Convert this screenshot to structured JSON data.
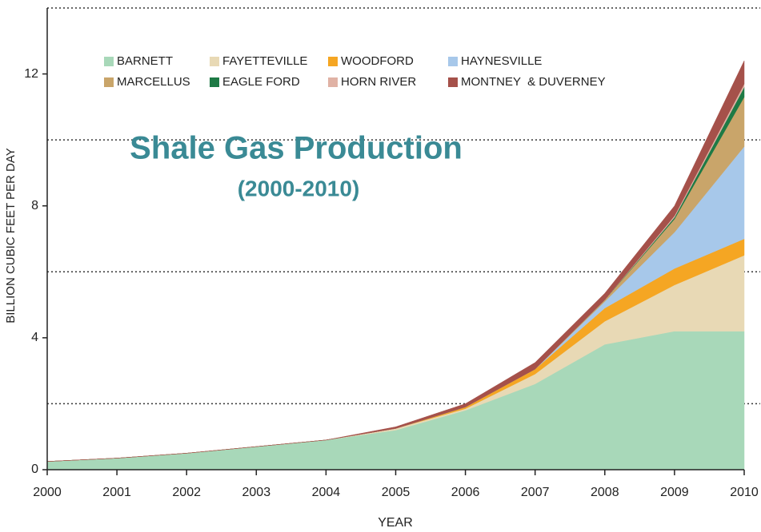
{
  "chart_data": {
    "type": "stacked_area",
    "title": "Shale Gas Production",
    "subtitle": "(2000-2010)",
    "x_label": "YEAR",
    "y_label": "BILLION CUBIC FEET PER DAY",
    "x": [
      2000,
      2001,
      2002,
      2003,
      2004,
      2005,
      2006,
      2007,
      2008,
      2009,
      2010
    ],
    "xlim": [
      2000,
      2010
    ],
    "xticks": [
      2000,
      2001,
      2002,
      2003,
      2004,
      2005,
      2006,
      2007,
      2008,
      2009,
      2010
    ],
    "ylim": [
      0,
      14
    ],
    "yticks": [
      0,
      4,
      8,
      12
    ],
    "grid_lines": [
      2,
      6,
      10,
      14
    ],
    "grid_style": "dotted",
    "legend_position": "top-left",
    "series": [
      {
        "name": "BARNETT",
        "color": "#a8d8b9",
        "values": [
          0.25,
          0.35,
          0.5,
          0.7,
          0.9,
          1.2,
          1.8,
          2.6,
          3.8,
          4.2,
          4.2
        ]
      },
      {
        "name": "FAYETTEVILLE",
        "color": "#e8d9b5",
        "values": [
          0,
          0,
          0,
          0,
          0,
          0.05,
          0.05,
          0.3,
          0.7,
          1.4,
          2.3
        ]
      },
      {
        "name": "WOODFORD",
        "color": "#f5a623",
        "values": [
          0,
          0,
          0,
          0,
          0,
          0,
          0.05,
          0.15,
          0.4,
          0.5,
          0.5
        ]
      },
      {
        "name": "HAYNESVILLE",
        "color": "#a7c8ea",
        "values": [
          0,
          0,
          0,
          0,
          0,
          0,
          0,
          0,
          0.2,
          1.1,
          2.8
        ]
      },
      {
        "name": "MARCELLUS",
        "color": "#c9a56a",
        "values": [
          0,
          0,
          0,
          0,
          0,
          0,
          0,
          0,
          0.05,
          0.4,
          1.5
        ]
      },
      {
        "name": "EAGLE FORD",
        "color": "#1e7a45",
        "values": [
          0,
          0,
          0,
          0,
          0,
          0,
          0,
          0,
          0,
          0.05,
          0.3
        ]
      },
      {
        "name": "HORN RIVER",
        "color": "#e0b2a5",
        "values": [
          0,
          0,
          0,
          0,
          0,
          0,
          0,
          0,
          0,
          0.05,
          0.1
        ]
      },
      {
        "name": "MONTNEY  & DUVERNEY",
        "color": "#a5514a",
        "values": [
          0,
          0,
          0,
          0,
          0,
          0.05,
          0.1,
          0.2,
          0.2,
          0.3,
          0.7
        ]
      }
    ]
  }
}
